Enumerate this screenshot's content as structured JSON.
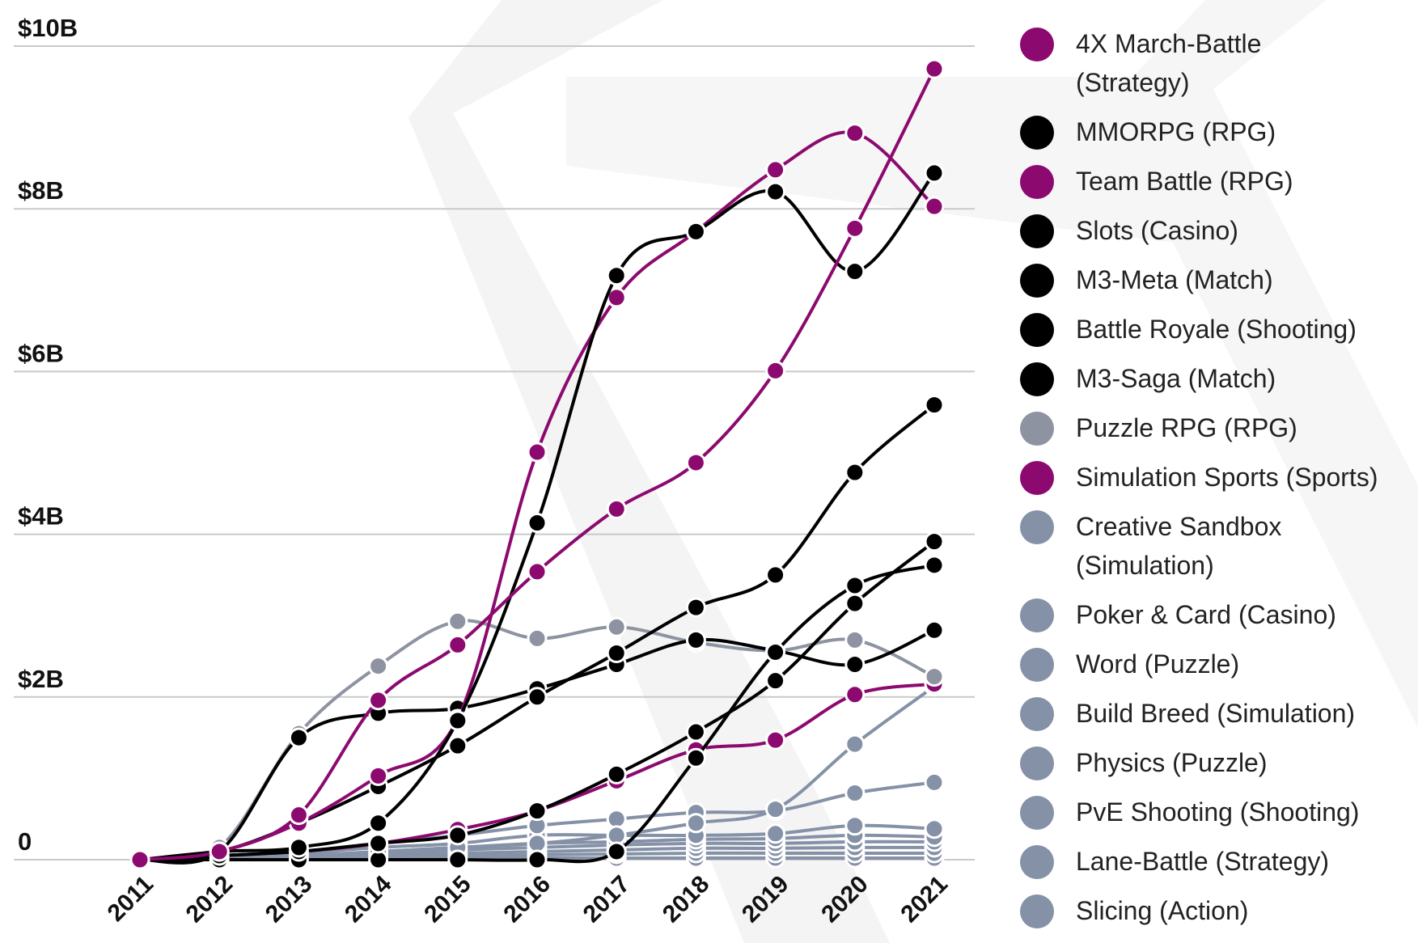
{
  "chart_data": {
    "type": "line",
    "categories": [
      "2011",
      "2012",
      "2013",
      "2014",
      "2015",
      "2016",
      "2017",
      "2018",
      "2019",
      "2020",
      "2021"
    ],
    "ylim": [
      0,
      10
    ],
    "yticks": [
      0,
      {
        "value": 2,
        "label": "$2B"
      },
      {
        "value": 4,
        "label": "$4B"
      },
      {
        "value": 6,
        "label": "$6B"
      },
      {
        "value": 8,
        "label": "$8B"
      },
      {
        "value": 10,
        "label": "$10B"
      }
    ],
    "grid": true,
    "legend": "right",
    "series": [
      {
        "name": "4X March-Battle (Strategy)",
        "color": "#8c0a6f",
        "values": [
          0,
          0.1,
          0.55,
          1.96,
          2.64,
          3.54,
          4.31,
          4.88,
          6.01,
          7.76,
          9.72
        ]
      },
      {
        "name": "MMORPG (RPG)",
        "color": "#000000",
        "values": [
          0,
          0.1,
          0.15,
          0.45,
          1.71,
          4.14,
          7.18,
          7.72,
          8.21,
          7.23,
          8.44
        ]
      },
      {
        "name": "Team Battle (RPG)",
        "color": "#8c0a6f",
        "values": [
          0,
          0.1,
          0.45,
          1.03,
          1.73,
          5.01,
          6.91,
          7.72,
          8.48,
          8.93,
          8.03
        ]
      },
      {
        "name": "Slots (Casino)",
        "color": "#000000",
        "values": [
          0,
          0.1,
          0.45,
          0.9,
          1.4,
          2.0,
          2.54,
          3.1,
          3.5,
          4.76,
          5.59
        ]
      },
      {
        "name": "M3-Meta (Match)",
        "color": "#000000",
        "values": [
          0,
          0.05,
          0.1,
          0.2,
          0.3,
          0.6,
          1.05,
          1.57,
          2.2,
          3.15,
          3.91
        ]
      },
      {
        "name": "Battle Royale (Shooting)",
        "color": "#000000",
        "values": [
          0,
          0,
          0,
          0,
          0,
          0,
          0.1,
          1.25,
          2.55,
          3.37,
          3.62
        ]
      },
      {
        "name": "M3-Saga (Match)",
        "color": "#000000",
        "values": [
          0,
          0.1,
          1.5,
          1.8,
          1.86,
          2.1,
          2.4,
          2.7,
          2.57,
          2.4,
          2.82
        ]
      },
      {
        "name": "Puzzle RPG (RPG)",
        "color": "#8d93a0",
        "values": [
          0,
          0.15,
          1.55,
          2.38,
          2.93,
          2.72,
          2.86,
          2.67,
          2.57,
          2.7,
          2.25
        ]
      },
      {
        "name": "Simulation Sports (Sports)",
        "color": "#8c0a6f",
        "values": [
          0,
          0.05,
          0.1,
          0.2,
          0.37,
          0.6,
          0.97,
          1.35,
          1.47,
          2.03,
          2.16
        ]
      },
      {
        "name": "Creative Sandbox (Simulation)",
        "color": "#8591a6",
        "values": [
          0,
          0.02,
          0.05,
          0.1,
          0.15,
          0.2,
          0.3,
          0.45,
          0.62,
          1.42,
          2.13
        ]
      },
      {
        "name": "Poker & Card (Casino)",
        "color": "#8591a6",
        "values": [
          0,
          0.05,
          0.1,
          0.2,
          0.3,
          0.42,
          0.5,
          0.58,
          0.6,
          0.82,
          0.95
        ]
      },
      {
        "name": "Word (Puzzle)",
        "color": "#8591a6",
        "values": [
          0,
          0.03,
          0.08,
          0.15,
          0.2,
          0.3,
          0.3,
          0.3,
          0.32,
          0.42,
          0.38
        ]
      },
      {
        "name": "Build Breed (Simulation)",
        "color": "#8591a6",
        "values": [
          0,
          0.02,
          0.05,
          0.1,
          0.15,
          0.2,
          0.22,
          0.25,
          0.26,
          0.3,
          0.28
        ]
      },
      {
        "name": "Physics (Puzzle)",
        "color": "#8591a6",
        "values": [
          0,
          0.02,
          0.04,
          0.08,
          0.12,
          0.15,
          0.18,
          0.2,
          0.2,
          0.22,
          0.22
        ]
      },
      {
        "name": "PvE Shooting (Shooting)",
        "color": "#8591a6",
        "values": [
          0,
          0.01,
          0.03,
          0.05,
          0.08,
          0.1,
          0.12,
          0.14,
          0.14,
          0.15,
          0.15
        ]
      },
      {
        "name": "Lane-Battle (Strategy)",
        "color": "#8591a6",
        "values": [
          0,
          0.01,
          0.02,
          0.04,
          0.05,
          0.06,
          0.07,
          0.08,
          0.08,
          0.08,
          0.08
        ]
      },
      {
        "name": "Slicing (Action)",
        "color": "#8591a6",
        "values": [
          0,
          0,
          0.01,
          0.01,
          0.02,
          0.02,
          0.02,
          0.02,
          0.02,
          0.02,
          0.02
        ]
      }
    ]
  }
}
